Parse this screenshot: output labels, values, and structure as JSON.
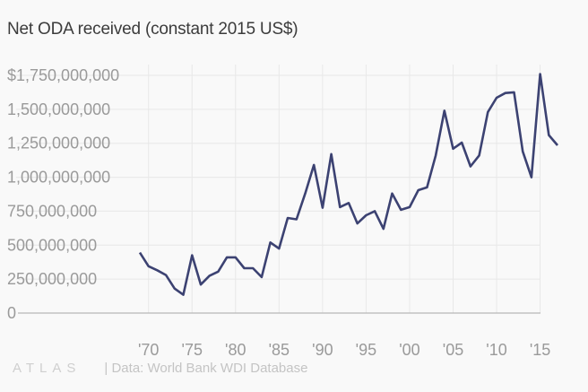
{
  "title": "Net ODA received (constant 2015 US$)",
  "logo": "ATLAS",
  "source": "| Data: World Bank WDI Database",
  "colors": {
    "line": "#3c4272",
    "grid": "#e8e8e8",
    "axis": "#a8a8a8",
    "text": "#9a9a9a"
  },
  "chart_data": {
    "type": "line",
    "title": "Net ODA received (constant 2015 US$)",
    "xlabel": "",
    "ylabel": "",
    "x_tick_labels": [
      "'70",
      "'75",
      "'80",
      "'85",
      "'90",
      "'95",
      "'00",
      "'05",
      "'10",
      "'15"
    ],
    "y_tick_labels": [
      "0",
      "250,000,000",
      "500,000,000",
      "750,000,000",
      "1,000,000,000",
      "1,250,000,000",
      "1,500,000,000",
      "$1,750,000,000"
    ],
    "xlim": [
      1969,
      2017
    ],
    "ylim": [
      0,
      1750000000
    ],
    "grid": true,
    "series": [
      {
        "x": [
          1969,
          1970,
          1971,
          1972,
          1973,
          1974,
          1975,
          1976,
          1977,
          1978,
          1979,
          1980,
          1981,
          1982,
          1983,
          1984,
          1985,
          1986,
          1987,
          1988,
          1989,
          1990,
          1991,
          1992,
          1993,
          1994,
          1995,
          1996,
          1997,
          1998,
          1999,
          2000,
          2001,
          2002,
          2003,
          2004,
          2005,
          2006,
          2007,
          2008,
          2009,
          2010,
          2011,
          2012,
          2013,
          2014,
          2015,
          2016,
          2017
        ],
        "values": [
          445000000,
          345000000,
          315000000,
          280000000,
          180000000,
          135000000,
          425000000,
          210000000,
          275000000,
          305000000,
          410000000,
          410000000,
          330000000,
          330000000,
          265000000,
          520000000,
          475000000,
          700000000,
          690000000,
          880000000,
          1090000000,
          775000000,
          1170000000,
          780000000,
          810000000,
          660000000,
          720000000,
          750000000,
          620000000,
          880000000,
          760000000,
          780000000,
          905000000,
          925000000,
          1160000000,
          1490000000,
          1210000000,
          1255000000,
          1080000000,
          1160000000,
          1480000000,
          1585000000,
          1620000000,
          1625000000,
          1190000000,
          1000000000,
          1760000000,
          1310000000,
          1235000000
        ]
      }
    ]
  }
}
